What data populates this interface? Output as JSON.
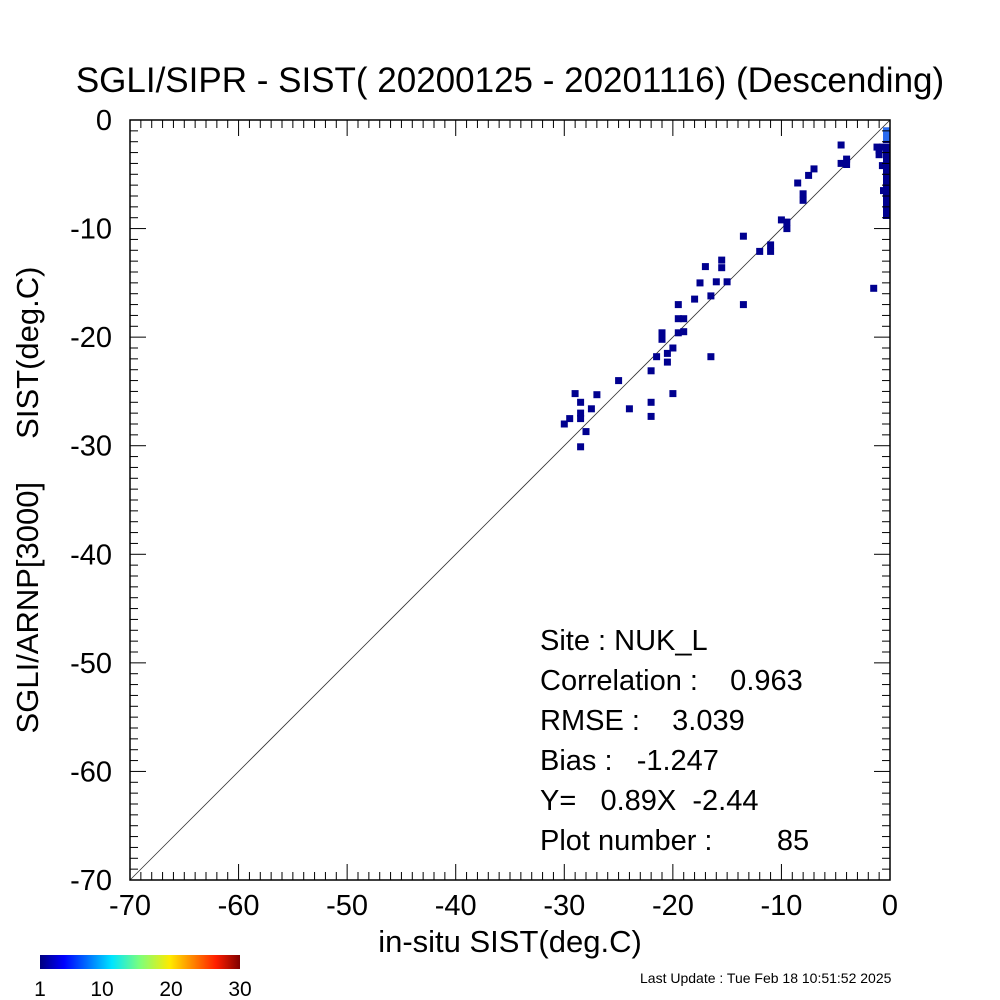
{
  "chart_data": {
    "type": "scatter",
    "title": "SGLI/SIPR - SIST( 20200125 - 20201116) (Descending)",
    "xlabel": "in-situ SIST(deg.C)",
    "ylabel": "SGLI/ARNP[3000]     SIST(deg.C)",
    "xlim": [
      -70,
      0
    ],
    "ylim": [
      -70,
      0
    ],
    "x_ticks": [
      "-70",
      "-60",
      "-50",
      "-40",
      "-30",
      "-20",
      "-10",
      "0"
    ],
    "y_ticks": [
      "-70",
      "-60",
      "-50",
      "-40",
      "-30",
      "-20",
      "-10",
      "0"
    ],
    "one_to_one_line": true,
    "grid": false,
    "point_color": "#00008f",
    "highlight_color": "#2a6cf0",
    "points": [
      [
        -30,
        -28
      ],
      [
        -29.5,
        -27.5
      ],
      [
        -29,
        -25.2
      ],
      [
        -28.5,
        -26
      ],
      [
        -28.5,
        -27
      ],
      [
        -28.5,
        -27.5
      ],
      [
        -28.5,
        -30.1
      ],
      [
        -28,
        -28.7
      ],
      [
        -27.5,
        -26.6
      ],
      [
        -27,
        -25.3
      ],
      [
        -25,
        -24
      ],
      [
        -24,
        -26.6
      ],
      [
        -22,
        -23.1
      ],
      [
        -22,
        -26
      ],
      [
        -22,
        -27.3
      ],
      [
        -21.5,
        -21.8
      ],
      [
        -21,
        -19.6
      ],
      [
        -21,
        -20.2
      ],
      [
        -20.5,
        -21.5
      ],
      [
        -20.5,
        -22.3
      ],
      [
        -20,
        -21
      ],
      [
        -20,
        -25.2
      ],
      [
        -19.5,
        -17
      ],
      [
        -19.5,
        -18.3
      ],
      [
        -19.5,
        -19.6
      ],
      [
        -19,
        -18.3
      ],
      [
        -19,
        -19.5
      ],
      [
        -18,
        -16.5
      ],
      [
        -17.5,
        -15
      ],
      [
        -17,
        -13.5
      ],
      [
        -16.5,
        -16.2
      ],
      [
        -16.5,
        -21.8
      ],
      [
        -16,
        -14.9
      ],
      [
        -15.5,
        -12.9
      ],
      [
        -15.5,
        -13.6
      ],
      [
        -15,
        -14.9
      ],
      [
        -13.5,
        -10.7
      ],
      [
        -13.5,
        -17
      ],
      [
        -12,
        -12.1
      ],
      [
        -11,
        -11.5
      ],
      [
        -11,
        -12.1
      ],
      [
        -10,
        -9.2
      ],
      [
        -9.5,
        -9.4
      ],
      [
        -9.5,
        -10
      ],
      [
        -8.5,
        -5.8
      ],
      [
        -8,
        -6.8
      ],
      [
        -8,
        -7.4
      ],
      [
        -7.5,
        -5.1
      ],
      [
        -7,
        -4.5
      ],
      [
        -4.5,
        -2.3
      ],
      [
        -4.5,
        -4
      ],
      [
        -4,
        -3.6
      ],
      [
        -4,
        -4.1
      ],
      [
        -1.5,
        -15.5
      ],
      [
        -1.2,
        -2.5
      ],
      [
        -1,
        -2.8
      ],
      [
        -1,
        -3.2
      ],
      [
        -0.7,
        -2.5
      ],
      [
        -0.7,
        -4.2
      ],
      [
        -0.6,
        -6.5
      ],
      [
        -0.3,
        -1.8
      ],
      [
        -0.3,
        -2.5
      ],
      [
        -0.3,
        -3.2
      ],
      [
        -0.3,
        -3.6
      ],
      [
        -0.3,
        -4
      ],
      [
        -0.3,
        -5.1
      ],
      [
        -0.3,
        -5.7
      ],
      [
        -0.3,
        -6.3
      ],
      [
        -0.3,
        -7
      ],
      [
        -0.3,
        -7.6
      ],
      [
        -0.3,
        -8.2
      ],
      [
        -0.3,
        -8.8
      ],
      [
        -0.1,
        -1
      ],
      [
        -0.1,
        -1.3
      ],
      [
        -0.1,
        -1.6
      ],
      [
        -0.1,
        -2.5
      ],
      [
        -0.1,
        -3
      ],
      [
        -0.1,
        -3.5
      ],
      [
        -0.1,
        -4.5
      ],
      [
        -0.1,
        -5.3
      ],
      [
        -0.1,
        -6
      ],
      [
        -0.1,
        -6.7
      ],
      [
        -0.1,
        -7.4
      ],
      [
        -0.1,
        -8
      ],
      [
        -0.1,
        -8.6
      ]
    ],
    "highlight_points": [
      [
        -0.1,
        -1
      ],
      [
        -0.1,
        -1.3
      ],
      [
        -0.1,
        -1.6
      ]
    ]
  },
  "stats": {
    "site": "Site : NUK_L",
    "correlation": "Correlation :    0.963",
    "rmse": "RMSE :    3.039",
    "bias": "Bias :   -1.247",
    "regression": "Y=   0.89X  -2.44",
    "plot_number": "Plot number :        85"
  },
  "colorbar": {
    "ticks": [
      "1",
      "10",
      "20",
      "30"
    ],
    "min": 1,
    "max": 30
  },
  "footer": {
    "last_update": "Last Update : Tue Feb 18 10:51:52 2025"
  }
}
